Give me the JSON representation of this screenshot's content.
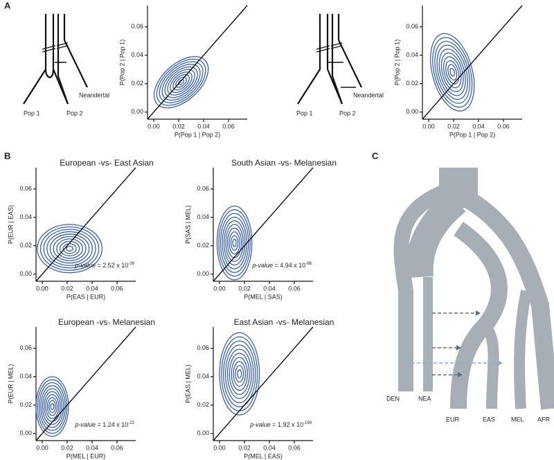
{
  "panel_labels": [
    "A",
    "B",
    "C"
  ],
  "trees": [
    {
      "labels": [
        "Pop 1",
        "Pop 2",
        "Neandertal"
      ]
    },
    {
      "labels": [
        "Pop 1",
        "Pop 2",
        "Neandertal"
      ]
    }
  ],
  "phylogeny": {
    "labels": [
      "DEN",
      "NEA",
      "EUR",
      "EAS",
      "MEL",
      "AFR"
    ]
  },
  "chart_data": [
    {
      "type": "contour",
      "xlabel": "P(Pop 1 | Pop 2)",
      "ylabel": "P(Pop 2 | Pop 1)",
      "xlim": [
        -0.005,
        0.075
      ],
      "ylim": [
        -0.005,
        0.075
      ],
      "xticks": [
        {
          "value": 0,
          "label": "0.00"
        },
        {
          "value": 0.02,
          "label": "0.02"
        },
        {
          "value": 0.04,
          "label": "0.04"
        },
        {
          "value": 0.06,
          "label": "0.06"
        }
      ],
      "yticks": [
        {
          "value": 0,
          "label": "0.00"
        },
        {
          "value": 0.02,
          "label": "0.02"
        },
        {
          "value": 0.04,
          "label": "0.04"
        },
        {
          "value": 0.06,
          "label": "0.06"
        }
      ],
      "peak": [
        0.022,
        0.021
      ],
      "spread": [
        0.026,
        0.013
      ],
      "tilt": 42,
      "levels": 10,
      "color": "#3a5fb0",
      "identity_line": true
    },
    {
      "type": "contour",
      "xlabel": "P(Pop 1 | Pop 2)",
      "ylabel": "P(Pop 2 | Pop 1)",
      "xlim": [
        -0.005,
        0.075
      ],
      "ylim": [
        -0.005,
        0.075
      ],
      "xticks": [
        {
          "value": 0,
          "label": "0.00"
        },
        {
          "value": 0.02,
          "label": "0.02"
        },
        {
          "value": 0.04,
          "label": "0.04"
        },
        {
          "value": 0.06,
          "label": "0.06"
        }
      ],
      "yticks": [
        {
          "value": 0,
          "label": "0.00"
        },
        {
          "value": 0.02,
          "label": "0.02"
        },
        {
          "value": 0.04,
          "label": "0.04"
        },
        {
          "value": 0.06,
          "label": "0.06"
        }
      ],
      "peak": [
        0.019,
        0.028
      ],
      "spread": [
        0.016,
        0.028
      ],
      "tilt": 15,
      "levels": 10,
      "color": "#3a5fb0",
      "identity_line": true
    },
    {
      "type": "contour",
      "title": "European -vs- East Asian",
      "xlabel": "P(EAS | EUR)",
      "ylabel": "P(EUR | EAS)",
      "xlim": [
        -0.005,
        0.075
      ],
      "ylim": [
        -0.005,
        0.075
      ],
      "xticks": [
        {
          "value": 0,
          "label": "0.00"
        },
        {
          "value": 0.02,
          "label": "0.02"
        },
        {
          "value": 0.04,
          "label": "0.04"
        },
        {
          "value": 0.06,
          "label": "0.06"
        }
      ],
      "yticks": [
        {
          "value": 0,
          "label": "0.00"
        },
        {
          "value": 0.02,
          "label": "0.02"
        },
        {
          "value": 0.04,
          "label": "0.04"
        },
        {
          "value": 0.06,
          "label": "0.06"
        }
      ],
      "peak": [
        0.022,
        0.018
      ],
      "spread": [
        0.026,
        0.017
      ],
      "tilt": 0,
      "levels": 10,
      "color": "#3a5fb0",
      "identity_line": true,
      "annotation": {
        "prefix": "p-value",
        "text": " = 2.52 x 10",
        "exponent": "-39"
      }
    },
    {
      "type": "contour",
      "title": "South Asian -vs- Melanesian",
      "xlabel": "P(MEL | SAS)",
      "ylabel": "P(SAS | MEL)",
      "xlim": [
        -0.005,
        0.075
      ],
      "ylim": [
        -0.005,
        0.075
      ],
      "xticks": [
        {
          "value": 0,
          "label": "0.00"
        },
        {
          "value": 0.02,
          "label": "0.02"
        },
        {
          "value": 0.04,
          "label": "0.04"
        },
        {
          "value": 0.06,
          "label": "0.06"
        }
      ],
      "yticks": [
        {
          "value": 0,
          "label": "0.00"
        },
        {
          "value": 0.02,
          "label": "0.02"
        },
        {
          "value": 0.04,
          "label": "0.04"
        },
        {
          "value": 0.06,
          "label": "0.06"
        }
      ],
      "peak": [
        0.012,
        0.022
      ],
      "spread": [
        0.014,
        0.026
      ],
      "tilt": 0,
      "levels": 10,
      "color": "#3a5fb0",
      "identity_line": true,
      "annotation": {
        "prefix": "p-value",
        "text": " = 4.94 x 10",
        "exponent": "-68"
      }
    },
    {
      "type": "contour",
      "title": "European -vs- Melanesian",
      "xlabel": "P(MEL | EUR)",
      "ylabel": "P(EUR | MEL)",
      "xlim": [
        -0.005,
        0.075
      ],
      "ylim": [
        -0.005,
        0.075
      ],
      "xticks": [
        {
          "value": 0,
          "label": "0.00"
        },
        {
          "value": 0.02,
          "label": "0.02"
        },
        {
          "value": 0.04,
          "label": "0.04"
        },
        {
          "value": 0.06,
          "label": "0.06"
        }
      ],
      "yticks": [
        {
          "value": 0,
          "label": "0.00"
        },
        {
          "value": 0.02,
          "label": "0.02"
        },
        {
          "value": 0.04,
          "label": "0.04"
        },
        {
          "value": 0.06,
          "label": "0.06"
        }
      ],
      "peak": [
        0.008,
        0.019
      ],
      "spread": [
        0.013,
        0.021
      ],
      "tilt": 0,
      "levels": 10,
      "color": "#3a5fb0",
      "identity_line": true,
      "annotation": {
        "prefix": "p-value",
        "text": " = 1.24 x 10",
        "exponent": "-22"
      }
    },
    {
      "type": "contour",
      "title": "East Asian -vs- Melanesian",
      "xlabel": "P(MEL | EAS)",
      "ylabel": "P(EAS | MEL)",
      "xlim": [
        -0.005,
        0.075
      ],
      "ylim": [
        -0.005,
        0.075
      ],
      "xticks": [
        {
          "value": 0,
          "label": "0.00"
        },
        {
          "value": 0.02,
          "label": "0.02"
        },
        {
          "value": 0.04,
          "label": "0.04"
        },
        {
          "value": 0.06,
          "label": "0.06"
        }
      ],
      "yticks": [
        {
          "value": 0,
          "label": "0.00"
        },
        {
          "value": 0.02,
          "label": "0.02"
        },
        {
          "value": 0.04,
          "label": "0.04"
        },
        {
          "value": 0.06,
          "label": "0.06"
        }
      ],
      "peak": [
        0.016,
        0.042
      ],
      "spread": [
        0.016,
        0.029
      ],
      "tilt": 0,
      "levels": 10,
      "color": "#3a5fb0",
      "identity_line": true,
      "annotation": {
        "prefix": "p-value",
        "text": " = 1.92 x 10",
        "exponent": "-159"
      }
    }
  ]
}
